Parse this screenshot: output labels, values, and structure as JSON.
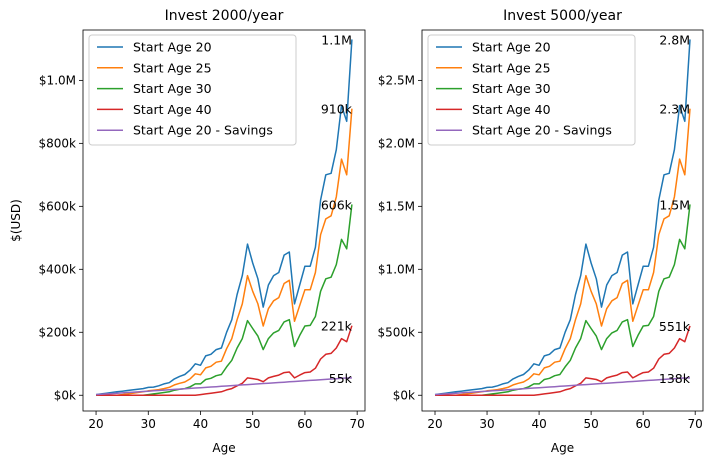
{
  "chart_data": [
    {
      "type": "line",
      "title": "Invest 2000/year",
      "xlabel": "Age",
      "ylabel": "$(USD)",
      "xlim": [
        17.5,
        71.5
      ],
      "ylim": [
        -50000,
        1160000
      ],
      "xticks": [
        20,
        30,
        40,
        50,
        60,
        70
      ],
      "xtick_labels": [
        "20",
        "30",
        "40",
        "50",
        "60",
        "70"
      ],
      "yticks": [
        0,
        200000,
        400000,
        600000,
        800000,
        1000000
      ],
      "ytick_labels": [
        "$0k",
        "$200k",
        "$400k",
        "$600k",
        "$800k",
        "$1.0M"
      ],
      "legend_position": "top-left",
      "grid": false,
      "x": [
        20,
        21,
        22,
        23,
        24,
        25,
        26,
        27,
        28,
        29,
        30,
        31,
        32,
        33,
        34,
        35,
        36,
        37,
        38,
        39,
        40,
        41,
        42,
        43,
        44,
        45,
        46,
        47,
        48,
        49,
        50,
        51,
        52,
        53,
        54,
        55,
        56,
        57,
        58,
        59,
        60,
        61,
        62,
        63,
        64,
        65,
        66,
        67,
        68,
        69
      ],
      "series": [
        {
          "name": "Start Age 20",
          "color": "#1f77b4",
          "values": [
            2000,
            4200,
            6500,
            8900,
            11000,
            13000,
            15000,
            17000,
            19000,
            21000,
            25000,
            26000,
            30000,
            36000,
            40000,
            52000,
            60000,
            66000,
            80000,
            100000,
            95000,
            125000,
            130000,
            145000,
            150000,
            200000,
            240000,
            320000,
            380000,
            480000,
            420000,
            370000,
            280000,
            350000,
            380000,
            390000,
            445000,
            455000,
            290000,
            350000,
            410000,
            410000,
            470000,
            620000,
            700000,
            705000,
            780000,
            920000,
            870000,
            1130000
          ],
          "end_label": "1.1M"
        },
        {
          "name": "Start Age 25",
          "color": "#ff7f0e",
          "values": [
            0,
            0,
            0,
            0,
            0,
            2000,
            4200,
            6500,
            8900,
            11000,
            14000,
            16000,
            18000,
            21000,
            25000,
            33000,
            38000,
            42000,
            52000,
            68000,
            65000,
            87000,
            92000,
            105000,
            108000,
            148000,
            180000,
            240000,
            290000,
            380000,
            330000,
            290000,
            220000,
            275000,
            300000,
            310000,
            355000,
            365000,
            235000,
            285000,
            335000,
            335000,
            390000,
            510000,
            560000,
            570000,
            630000,
            750000,
            700000,
            910000
          ],
          "end_label": "910k"
        },
        {
          "name": "Start Age 30",
          "color": "#2ca02c",
          "values": [
            0,
            0,
            0,
            0,
            0,
            0,
            0,
            0,
            0,
            0,
            2000,
            4200,
            6500,
            8900,
            11000,
            16000,
            19000,
            21000,
            27000,
            36000,
            36000,
            50000,
            54000,
            62000,
            66000,
            90000,
            111000,
            150000,
            180000,
            237000,
            212000,
            188000,
            145000,
            180000,
            198000,
            206000,
            233000,
            240000,
            155000,
            190000,
            220000,
            222000,
            250000,
            330000,
            370000,
            375000,
            415000,
            495000,
            465000,
            606000
          ],
          "end_label": "606k"
        },
        {
          "name": "Start Age 40",
          "color": "#d62728",
          "values": [
            0,
            0,
            0,
            0,
            0,
            0,
            0,
            0,
            0,
            0,
            0,
            0,
            0,
            0,
            0,
            0,
            0,
            0,
            0,
            0,
            2000,
            4200,
            6500,
            8900,
            11000,
            17000,
            21000,
            30000,
            38000,
            55000,
            53000,
            50000,
            43000,
            55000,
            60000,
            64000,
            72000,
            74000,
            55000,
            64000,
            72000,
            74000,
            86000,
            115000,
            130000,
            133000,
            150000,
            180000,
            170000,
            221000
          ],
          "end_label": "221k"
        },
        {
          "name": "Start Age 20 - Savings",
          "color": "#9467bd",
          "values": [
            2000,
            3100,
            4200,
            5300,
            6400,
            7500,
            8600,
            9700,
            10800,
            11900,
            13000,
            14100,
            15200,
            16300,
            17400,
            18500,
            19600,
            20700,
            21800,
            22900,
            24000,
            25100,
            26200,
            27300,
            28400,
            29500,
            30600,
            31700,
            32800,
            33900,
            35000,
            36100,
            37200,
            38300,
            39400,
            40500,
            41600,
            42700,
            43800,
            44900,
            46000,
            47100,
            48200,
            49300,
            50400,
            51500,
            52600,
            53700,
            54800,
            55000
          ],
          "end_label": "55k"
        }
      ]
    },
    {
      "type": "line",
      "title": "Invest 5000/year",
      "xlabel": "Age",
      "ylabel": "",
      "xlim": [
        17.5,
        71.5
      ],
      "ylim": [
        -125000,
        2900000
      ],
      "xticks": [
        20,
        30,
        40,
        50,
        60,
        70
      ],
      "xtick_labels": [
        "20",
        "30",
        "40",
        "50",
        "60",
        "70"
      ],
      "yticks": [
        0,
        500000,
        1000000,
        1500000,
        2000000,
        2500000
      ],
      "ytick_labels": [
        "$0k",
        "$500k",
        "$1.0M",
        "$1.5M",
        "$2.0M",
        "$2.5M"
      ],
      "legend_position": "top-left",
      "grid": false,
      "x": [
        20,
        21,
        22,
        23,
        24,
        25,
        26,
        27,
        28,
        29,
        30,
        31,
        32,
        33,
        34,
        35,
        36,
        37,
        38,
        39,
        40,
        41,
        42,
        43,
        44,
        45,
        46,
        47,
        48,
        49,
        50,
        51,
        52,
        53,
        54,
        55,
        56,
        57,
        58,
        59,
        60,
        61,
        62,
        63,
        64,
        65,
        66,
        67,
        68,
        69
      ],
      "series": [
        {
          "name": "Start Age 20",
          "color": "#1f77b4",
          "values": [
            5000,
            10500,
            16250,
            22250,
            27500,
            32500,
            37500,
            42500,
            47500,
            52500,
            62500,
            65000,
            75000,
            90000,
            100000,
            130000,
            150000,
            165000,
            200000,
            250000,
            237500,
            312500,
            325000,
            362500,
            375000,
            500000,
            600000,
            800000,
            950000,
            1200000,
            1050000,
            925000,
            700000,
            875000,
            950000,
            975000,
            1112500,
            1137500,
            725000,
            875000,
            1025000,
            1025000,
            1175000,
            1550000,
            1750000,
            1762500,
            1950000,
            2300000,
            2175000,
            2825000
          ],
          "end_label": "2.8M"
        },
        {
          "name": "Start Age 25",
          "color": "#ff7f0e",
          "values": [
            0,
            0,
            0,
            0,
            0,
            5000,
            10500,
            16250,
            22250,
            27500,
            35000,
            40000,
            45000,
            52500,
            62500,
            82500,
            95000,
            105000,
            130000,
            170000,
            162500,
            217500,
            230000,
            262500,
            270000,
            370000,
            450000,
            600000,
            725000,
            950000,
            825000,
            725000,
            550000,
            687500,
            750000,
            775000,
            887500,
            912500,
            587500,
            712500,
            837500,
            837500,
            975000,
            1275000,
            1400000,
            1425000,
            1575000,
            1875000,
            1750000,
            2275000
          ],
          "end_label": "2.3M"
        },
        {
          "name": "Start Age 30",
          "color": "#2ca02c",
          "values": [
            0,
            0,
            0,
            0,
            0,
            0,
            0,
            0,
            0,
            0,
            5000,
            10500,
            16250,
            22250,
            27500,
            40000,
            47500,
            52500,
            67500,
            90000,
            90000,
            125000,
            135000,
            155000,
            165000,
            225000,
            277500,
            375000,
            450000,
            592500,
            530000,
            470000,
            362500,
            450000,
            495000,
            515000,
            582500,
            600000,
            387500,
            475000,
            550000,
            555000,
            625000,
            825000,
            925000,
            937500,
            1037500,
            1237500,
            1162500,
            1515000
          ],
          "end_label": "1.5M"
        },
        {
          "name": "Start Age 40",
          "color": "#d62728",
          "values": [
            0,
            0,
            0,
            0,
            0,
            0,
            0,
            0,
            0,
            0,
            0,
            0,
            0,
            0,
            0,
            0,
            0,
            0,
            0,
            0,
            5000,
            10500,
            16250,
            22250,
            27500,
            42500,
            52500,
            75000,
            95000,
            137500,
            132500,
            125000,
            107500,
            137500,
            150000,
            160000,
            180000,
            185000,
            137500,
            160000,
            180000,
            185000,
            215000,
            287500,
            325000,
            332500,
            375000,
            450000,
            425000,
            551000
          ],
          "end_label": "551k"
        },
        {
          "name": "Start Age 20 - Savings",
          "color": "#9467bd",
          "values": [
            5000,
            7750,
            10500,
            13250,
            16000,
            18750,
            21500,
            24250,
            27000,
            29750,
            32500,
            35250,
            38000,
            40750,
            43500,
            46250,
            49000,
            51750,
            54500,
            57250,
            60000,
            62750,
            65500,
            68250,
            71000,
            73750,
            76500,
            79250,
            82000,
            84750,
            87500,
            90250,
            93000,
            95750,
            98500,
            101250,
            104000,
            106750,
            109500,
            112250,
            115000,
            117750,
            120500,
            123250,
            126000,
            128750,
            131500,
            134250,
            137000,
            138000
          ],
          "end_label": "138k"
        }
      ]
    }
  ]
}
